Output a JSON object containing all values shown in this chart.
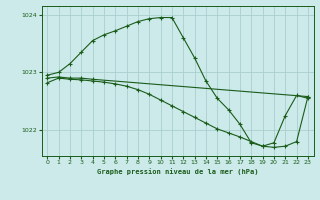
{
  "title": "Graphe pression niveau de la mer (hPa)",
  "background_color": "#cceaea",
  "grid_color": "#aacece",
  "line_color": "#1a5c1a",
  "xlim": [
    -0.5,
    23.5
  ],
  "ylim": [
    1021.55,
    1024.15
  ],
  "yticks": [
    1022,
    1023,
    1024
  ],
  "xticks": [
    0,
    1,
    2,
    3,
    4,
    5,
    6,
    7,
    8,
    9,
    10,
    11,
    12,
    13,
    14,
    15,
    16,
    17,
    18,
    19,
    20,
    21,
    22,
    23
  ],
  "line1_x": [
    0,
    1,
    2,
    3,
    4,
    5,
    6,
    7,
    8,
    9,
    10,
    11,
    12,
    13,
    14,
    15,
    16,
    17,
    18,
    19,
    20,
    21,
    22,
    23
  ],
  "line1_y": [
    1022.95,
    1023.0,
    1023.15,
    1023.35,
    1023.55,
    1023.65,
    1023.72,
    1023.8,
    1023.88,
    1023.93,
    1023.95,
    1023.95,
    1023.6,
    1023.25,
    1022.85,
    1022.55,
    1022.35,
    1022.1,
    1021.78,
    1021.72,
    1021.78,
    1022.25,
    1022.6,
    1022.55
  ],
  "line2_x": [
    0,
    1,
    2,
    3,
    4,
    5,
    6,
    7,
    8,
    9,
    10,
    11,
    12,
    13,
    14,
    15,
    16,
    17,
    18,
    19,
    20,
    21,
    22,
    23
  ],
  "line2_y": [
    1022.82,
    1022.9,
    1022.88,
    1022.87,
    1022.85,
    1022.83,
    1022.8,
    1022.76,
    1022.7,
    1022.62,
    1022.52,
    1022.42,
    1022.32,
    1022.22,
    1022.12,
    1022.02,
    1021.95,
    1021.88,
    1021.8,
    1021.72,
    1021.7,
    1021.72,
    1021.8,
    1022.58
  ],
  "line3_x": [
    0,
    1,
    2,
    3,
    4,
    23
  ],
  "line3_y": [
    1022.9,
    1022.92,
    1022.9,
    1022.9,
    1022.88,
    1022.58
  ]
}
